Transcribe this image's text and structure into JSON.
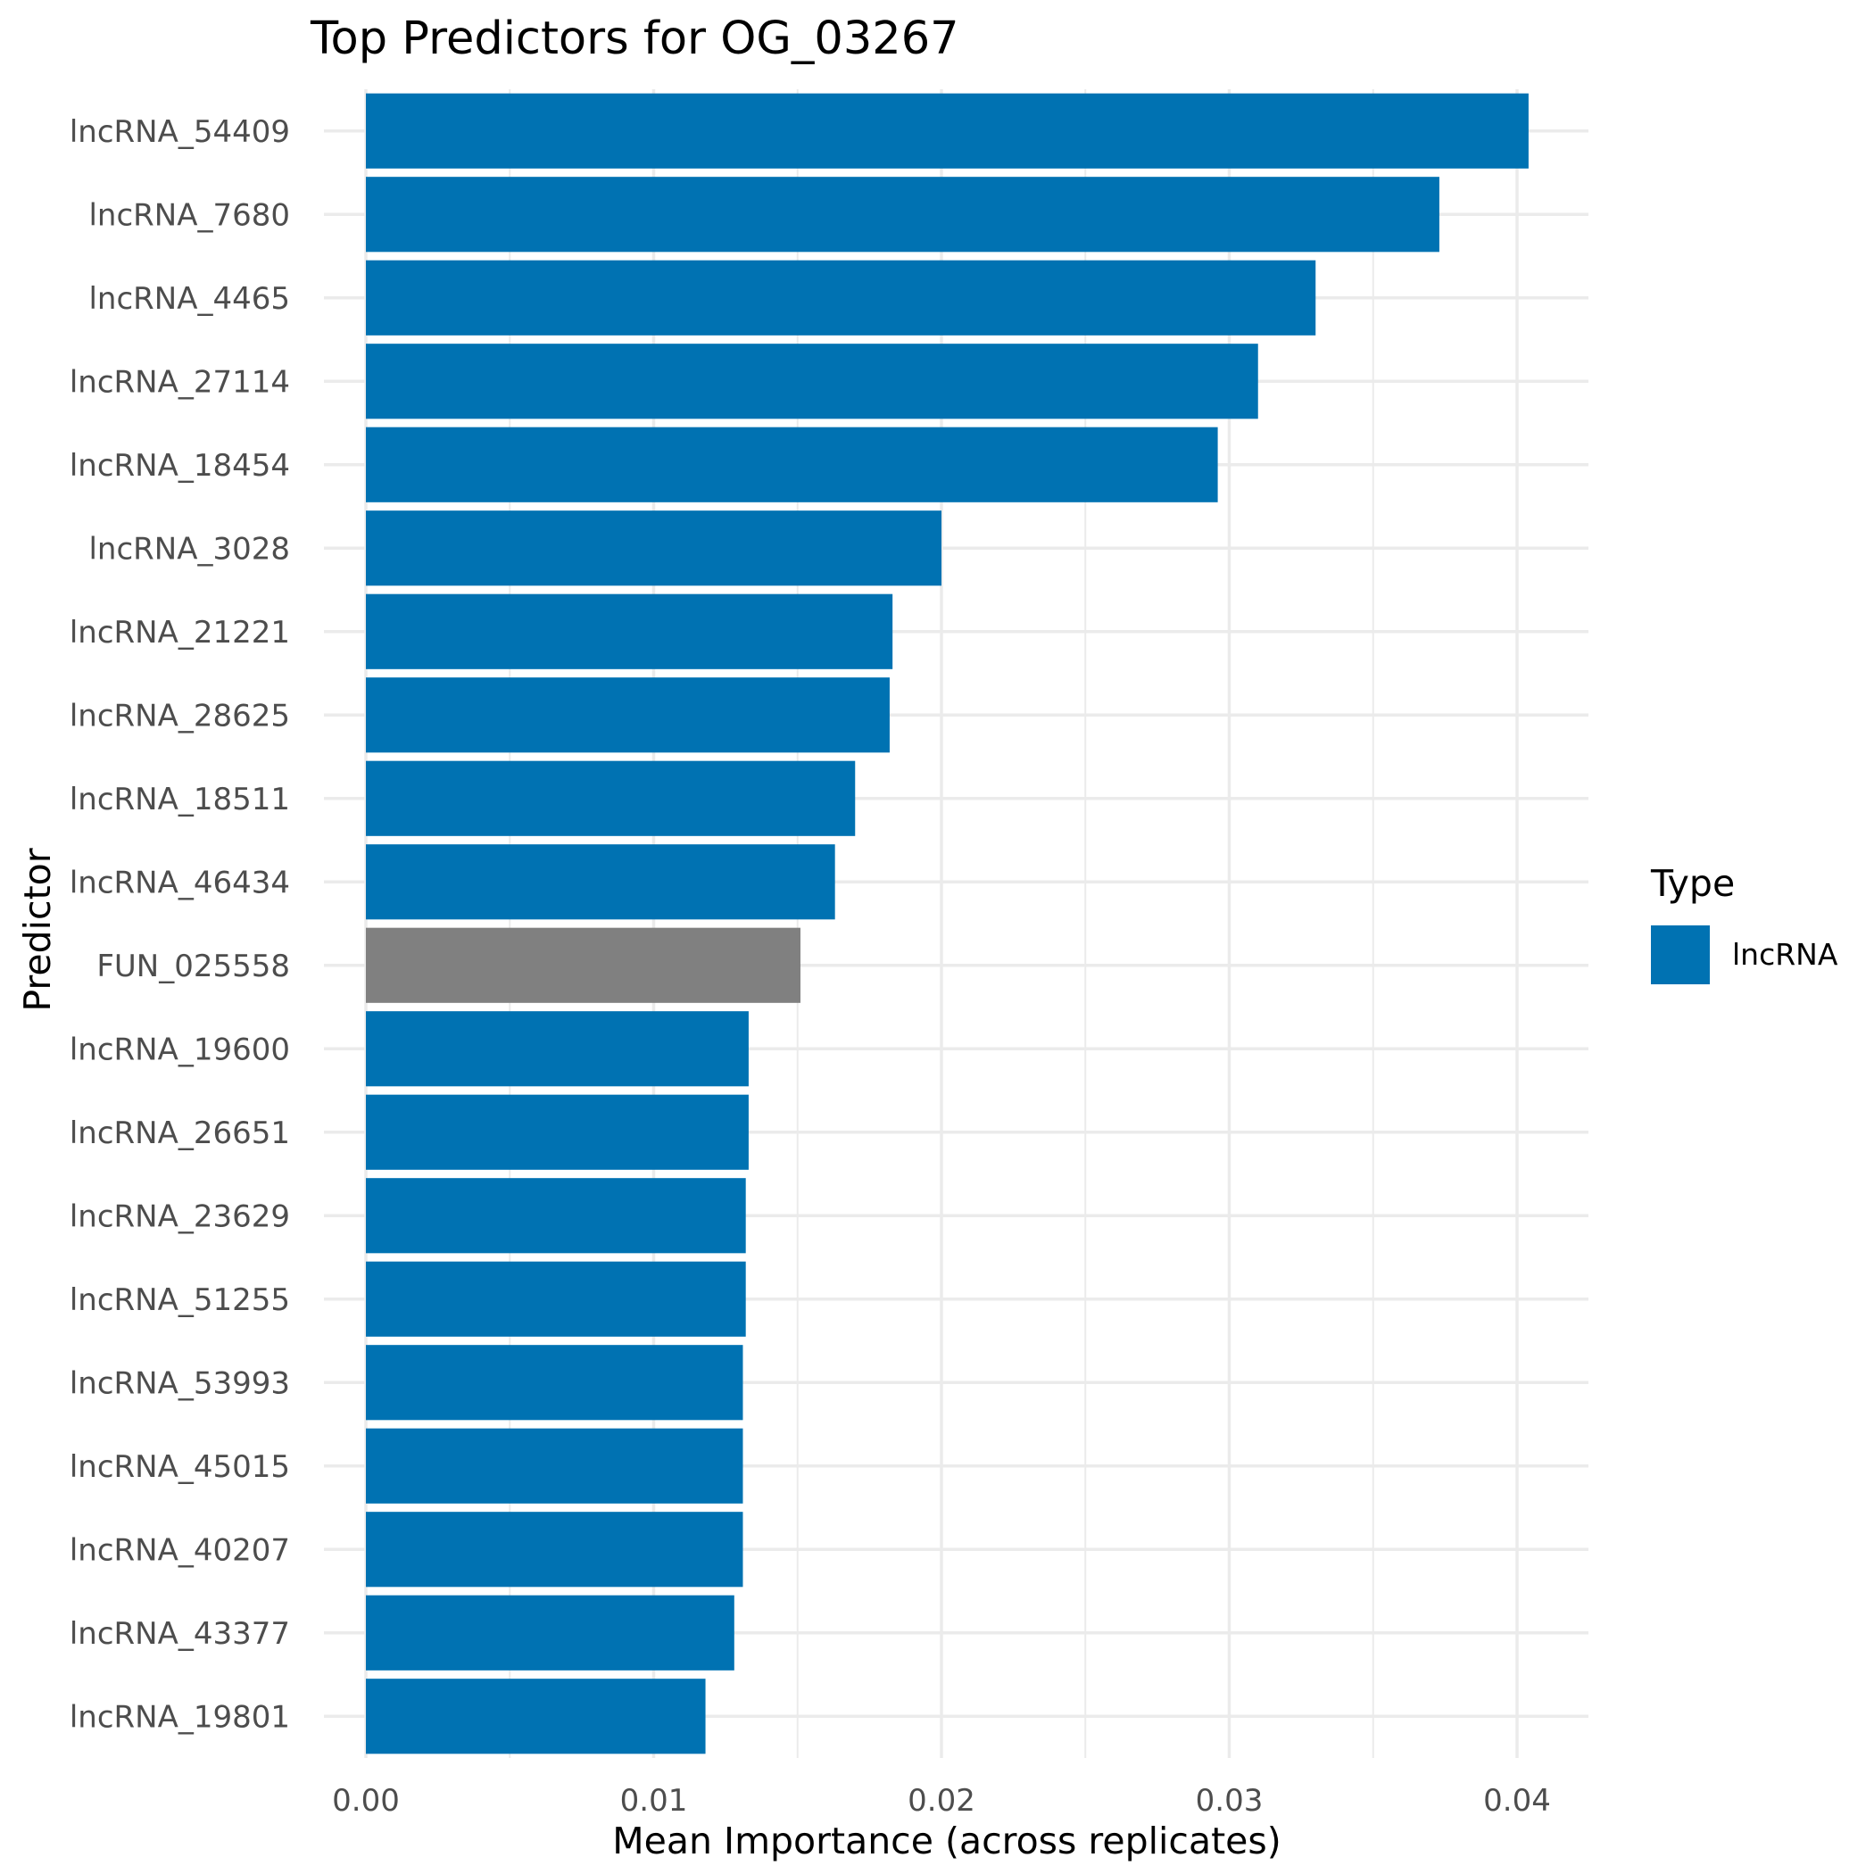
{
  "chart_data": {
    "type": "bar",
    "orientation": "horizontal",
    "title": "Top Predictors for OG_03267",
    "xlabel": "Mean Importance (across replicates)",
    "ylabel": "Predictor",
    "xlim": [
      0,
      0.0424
    ],
    "xticks": [
      0,
      0.01,
      0.02,
      0.03,
      0.04
    ],
    "xtick_labels": [
      "0.00",
      "0.01",
      "0.02",
      "0.03",
      "0.04"
    ],
    "grid": true,
    "legend": {
      "title": "Type",
      "position": "right",
      "entries": [
        {
          "label": "lncRNA",
          "color": "#0072B2"
        }
      ]
    },
    "colors": {
      "lncRNA": "#0072B2",
      "other": "#808080"
    },
    "categories": [
      "lncRNA_54409",
      "lncRNA_7680",
      "lncRNA_4465",
      "lncRNA_27114",
      "lncRNA_18454",
      "lncRNA_3028",
      "lncRNA_21221",
      "lncRNA_28625",
      "lncRNA_18511",
      "lncRNA_46434",
      "FUN_025558",
      "lncRNA_19600",
      "lncRNA_26651",
      "lncRNA_23629",
      "lncRNA_51255",
      "lncRNA_53993",
      "lncRNA_45015",
      "lncRNA_40207",
      "lncRNA_43377",
      "lncRNA_19801"
    ],
    "values": [
      0.0404,
      0.0373,
      0.033,
      0.031,
      0.0296,
      0.02,
      0.0183,
      0.0182,
      0.017,
      0.0163,
      0.0151,
      0.0133,
      0.0133,
      0.0132,
      0.0132,
      0.0131,
      0.0131,
      0.0131,
      0.0128,
      0.0118
    ],
    "types": [
      "lncRNA",
      "lncRNA",
      "lncRNA",
      "lncRNA",
      "lncRNA",
      "lncRNA",
      "lncRNA",
      "lncRNA",
      "lncRNA",
      "lncRNA",
      "other",
      "lncRNA",
      "lncRNA",
      "lncRNA",
      "lncRNA",
      "lncRNA",
      "lncRNA",
      "lncRNA",
      "lncRNA",
      "lncRNA"
    ]
  }
}
